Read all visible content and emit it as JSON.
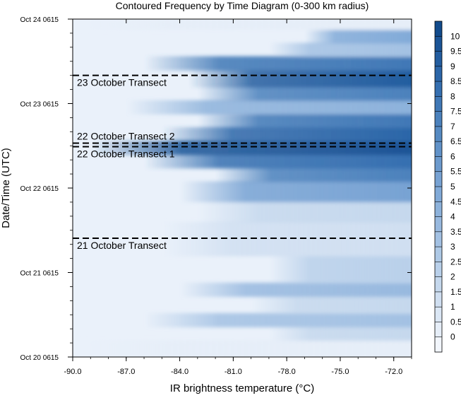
{
  "chart_data": {
    "type": "heatmap",
    "title": "Contoured Frequency by Time Diagram (0-300 km radius)",
    "xlabel": "IR brightness temperature (°C)",
    "ylabel": "Date/Time (UTC)",
    "xlim": [
      -90.0,
      -71.0
    ],
    "x_ticks": [
      -90.0,
      -87.0,
      -84.0,
      -81.0,
      -78.0,
      -75.0,
      -72.0
    ],
    "x_tick_labels": [
      "-90.0",
      "-87.0",
      "-84.0",
      "-81.0",
      "-78.0",
      "-75.0",
      "-72.0"
    ],
    "ylim": [
      "Oct 20 0615",
      "Oct 24 0615"
    ],
    "y_ticks": [
      "Oct 20 0615",
      "Oct 21 0615",
      "Oct 22 0615",
      "Oct 23 0615",
      "Oct 24 0615"
    ],
    "colorbar": {
      "levels": [
        "0",
        "0.5",
        "1",
        "1.5",
        "2",
        "2.5",
        "3",
        "3.5",
        "4",
        "4.5",
        "5",
        "5.5",
        "6",
        "6.5",
        "7",
        "7.5",
        "8",
        "8.5",
        "9",
        "9.5",
        "10"
      ],
      "colors": [
        "#f2f6fc",
        "#e6eef8",
        "#dbe7f5",
        "#d0dff1",
        "#c5d8ed",
        "#b9d0ea",
        "#aec9e6",
        "#a3c1e3",
        "#98b9df",
        "#8db2db",
        "#81aad8",
        "#77a2d3",
        "#6c9acd",
        "#6192c8",
        "#568ac2",
        "#4b81bc",
        "#4078b6",
        "#356fb0",
        "#2c66a8",
        "#235d9f",
        "#1b5496",
        "#124b8c"
      ]
    },
    "transects": [
      {
        "label": "23 October Transect",
        "time": "Oct 23 1415"
      },
      {
        "label": "22 October Transect 2",
        "time": "Oct 22 1900"
      },
      {
        "label": "22 October Transect 1",
        "time": "Oct 22 1800"
      },
      {
        "label": "21 October Transect",
        "time": "Oct 21 1600"
      }
    ],
    "bands": [
      {
        "t0": 0.0,
        "t1": 0.05,
        "x0": -90.0,
        "value": 0.0
      },
      {
        "t0": 0.05,
        "t1": 0.09,
        "x0": -79.0,
        "value": 1.5
      },
      {
        "t0": 0.09,
        "t1": 0.13,
        "x0": -86.0,
        "value": 3.0
      },
      {
        "t0": 0.13,
        "t1": 0.18,
        "x0": -80.0,
        "value": 1.5
      },
      {
        "t0": 0.18,
        "t1": 0.22,
        "x0": -84.0,
        "value": 3.5
      },
      {
        "t0": 0.22,
        "t1": 0.3,
        "x0": -79.0,
        "value": 2.0
      },
      {
        "t0": 0.3,
        "t1": 0.4,
        "x0": -85.0,
        "value": 1.0
      },
      {
        "t0": 0.4,
        "t1": 0.46,
        "x0": -83.0,
        "value": 1.5
      },
      {
        "t0": 0.46,
        "t1": 0.52,
        "x0": -84.0,
        "value": 5.0
      },
      {
        "t0": 0.52,
        "t1": 0.56,
        "x0": -82.0,
        "value": 7.0
      },
      {
        "t0": 0.56,
        "t1": 0.6,
        "x0": -86.0,
        "value": 8.0
      },
      {
        "t0": 0.6,
        "t1": 0.64,
        "x0": -89.0,
        "value": 9.5
      },
      {
        "t0": 0.64,
        "t1": 0.68,
        "x0": -85.0,
        "value": 8.5
      },
      {
        "t0": 0.68,
        "t1": 0.72,
        "x0": -83.0,
        "value": 7.5
      },
      {
        "t0": 0.72,
        "t1": 0.76,
        "x0": -87.0,
        "value": 4.0
      },
      {
        "t0": 0.76,
        "t1": 0.8,
        "x0": -83.0,
        "value": 7.0
      },
      {
        "t0": 0.8,
        "t1": 0.85,
        "x0": -83.5,
        "value": 9.0
      },
      {
        "t0": 0.85,
        "t1": 0.89,
        "x0": -86.0,
        "value": 7.5
      },
      {
        "t0": 0.89,
        "t1": 0.93,
        "x0": -79.0,
        "value": 3.0
      },
      {
        "t0": 0.93,
        "t1": 0.97,
        "x0": -77.0,
        "value": 4.5
      },
      {
        "t0": 0.97,
        "t1": 1.0,
        "x0": -90.0,
        "value": 0.0
      }
    ]
  }
}
